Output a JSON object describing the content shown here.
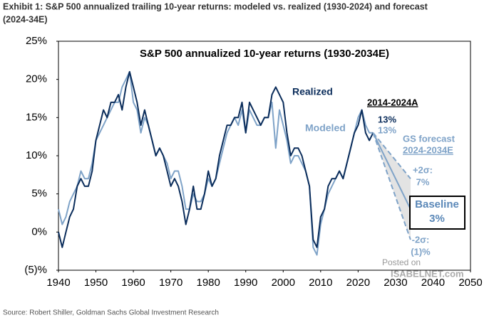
{
  "chart_data": {
    "type": "line",
    "exhibit_title": [
      "Exhibit 1: S&P 500 annualized trailing 10-year returns: modeled vs. realized (1930-2024) and forecast",
      "(2024-34E)"
    ],
    "title": "S&P 500 annualized 10-year returns (1930-2034E)",
    "source": "Source: Robert Shiller, Goldman Sachs Global Investment Research",
    "x": [
      1940,
      1941,
      1942,
      1943,
      1944,
      1945,
      1946,
      1947,
      1948,
      1949,
      1950,
      1951,
      1952,
      1953,
      1954,
      1955,
      1956,
      1957,
      1958,
      1959,
      1960,
      1961,
      1962,
      1963,
      1964,
      1965,
      1966,
      1967,
      1968,
      1969,
      1970,
      1971,
      1972,
      1973,
      1974,
      1975,
      1976,
      1977,
      1978,
      1979,
      1980,
      1981,
      1982,
      1983,
      1984,
      1985,
      1986,
      1987,
      1988,
      1989,
      1990,
      1991,
      1992,
      1993,
      1994,
      1995,
      1996,
      1997,
      1998,
      1999,
      2000,
      2001,
      2002,
      2003,
      2004,
      2005,
      2006,
      2007,
      2008,
      2009,
      2010,
      2011,
      2012,
      2013,
      2014,
      2015,
      2016,
      2017,
      2018,
      2019,
      2020,
      2021,
      2022,
      2023,
      2024
    ],
    "series": [
      {
        "name": "Modeled",
        "color": "#7fa3c8",
        "values": [
          3,
          1,
          2,
          4,
          5,
          6,
          8,
          7,
          7,
          9,
          12,
          13,
          14,
          15,
          16,
          17,
          17,
          19,
          20,
          21,
          17,
          16,
          13,
          15,
          14,
          12,
          10,
          11,
          10,
          9,
          7,
          8,
          8,
          6,
          3,
          3,
          5,
          4,
          4,
          5,
          7,
          6,
          7,
          9,
          11,
          13,
          14,
          15,
          14,
          16,
          13,
          16,
          15,
          14,
          14,
          15,
          15,
          17,
          11,
          16,
          14,
          12,
          9,
          10,
          10,
          9,
          8,
          6,
          -2,
          -3,
          1,
          3,
          5,
          6,
          7,
          8,
          7,
          9,
          11,
          13,
          15,
          16,
          14,
          13,
          13
        ]
      },
      {
        "name": "Realized",
        "color": "#0b2d5b",
        "values": [
          0,
          -2,
          0,
          2,
          3,
          6,
          7,
          6,
          6,
          8,
          12,
          14,
          16,
          15,
          17,
          17,
          18,
          16,
          19,
          21,
          19,
          17,
          14,
          16,
          14,
          12,
          10,
          11,
          10,
          8,
          6,
          7,
          6,
          4,
          1,
          3,
          6,
          3,
          3,
          5,
          8,
          6,
          7,
          10,
          12,
          14,
          14,
          15,
          15,
          17,
          13,
          17,
          16,
          15,
          14,
          15,
          15,
          18,
          19,
          18,
          17,
          13,
          10,
          11,
          11,
          10,
          8,
          6,
          -1,
          -2,
          2,
          3,
          6,
          7,
          7,
          8,
          7,
          9,
          11,
          13,
          14,
          16,
          13,
          12,
          13
        ]
      }
    ],
    "forecast": [
      {
        "name": "+2σ:",
        "color": "#7fa3c8",
        "dashed": true,
        "x": [
          2024,
          2034
        ],
        "values": [
          13,
          7
        ],
        "value_labels": [
          null,
          "7%"
        ]
      },
      {
        "name": "Baseline",
        "color": "#7fa3c8",
        "dashed": false,
        "x": [
          2024,
          2034
        ],
        "values": [
          13,
          3
        ],
        "value_labels": [
          null,
          "3%"
        ]
      },
      {
        "name": "-2σ:",
        "color": "#7fa3c8",
        "dashed": true,
        "x": [
          2024,
          2034
        ],
        "values": [
          13,
          -1
        ],
        "value_labels": [
          null,
          "(1)%"
        ]
      }
    ],
    "annotations": [
      "2014-2024A",
      "13%",
      "13%",
      "GS forecast",
      "2024-2034E",
      "Posted on",
      "ISABELNET.com"
    ],
    "xlim": [
      1940,
      2050
    ],
    "xticks": [
      1940,
      1950,
      1960,
      1970,
      1980,
      1990,
      2000,
      2010,
      2020,
      2030,
      2040,
      2050
    ],
    "ylim": [
      -5,
      25
    ],
    "yticks": [
      {
        "value": -5,
        "label": "(5)%"
      },
      {
        "value": 0,
        "label": "0%"
      },
      {
        "value": 5,
        "label": "5%"
      },
      {
        "value": 10,
        "label": "10%"
      },
      {
        "value": 15,
        "label": "15%"
      },
      {
        "value": 20,
        "label": "20%"
      },
      {
        "value": 25,
        "label": "25%"
      }
    ],
    "grid": false
  }
}
